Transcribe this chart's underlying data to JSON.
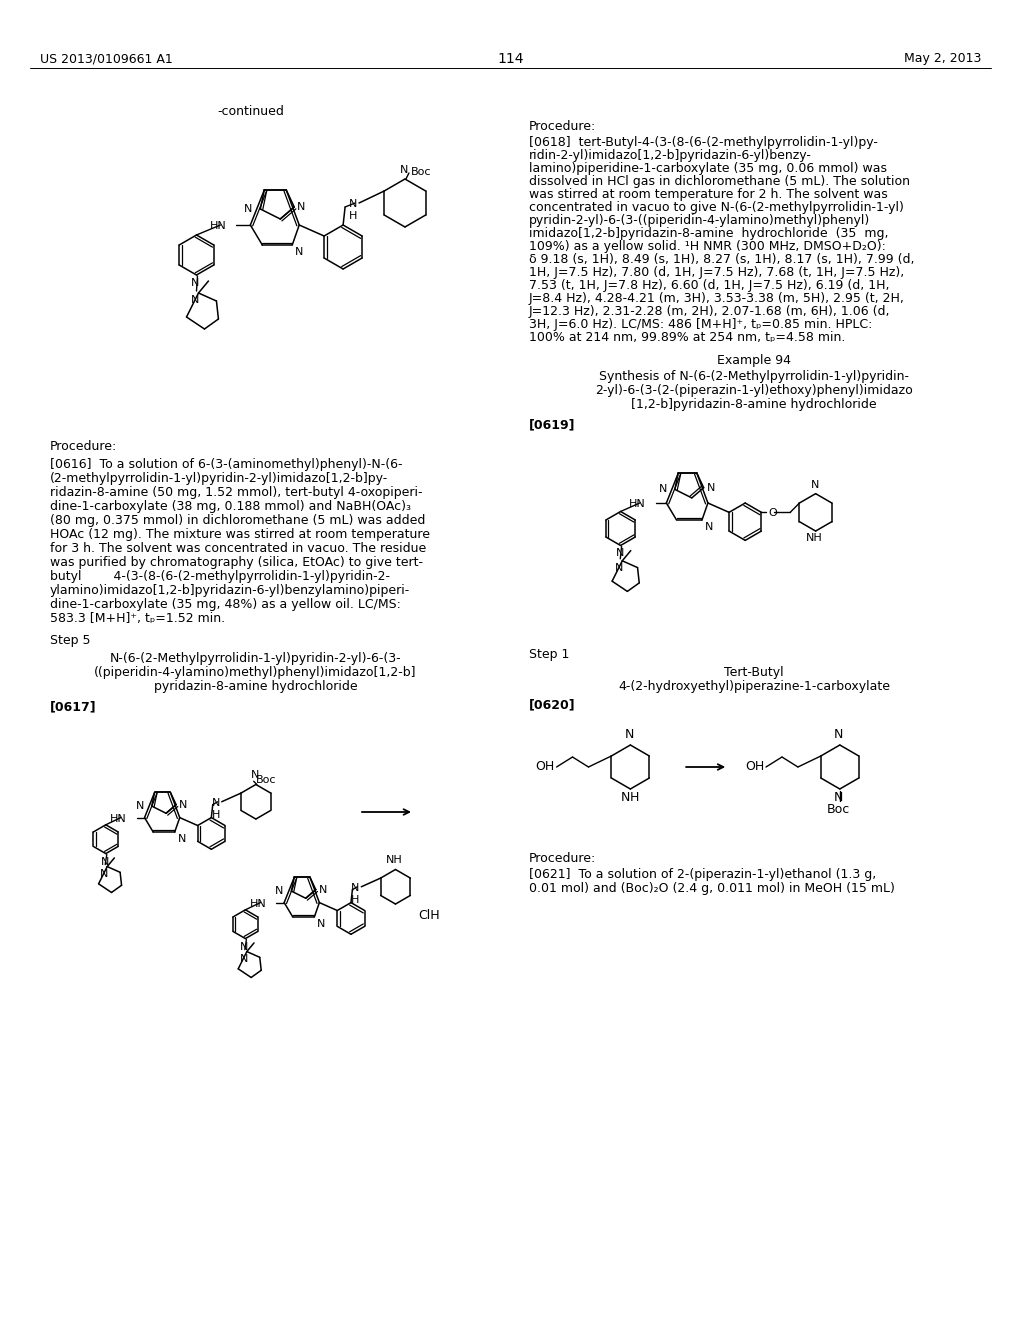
{
  "bg": "#ffffff",
  "header_left": "US 2013/0109661 A1",
  "header_right": "May 2, 2013",
  "page_num": "114"
}
